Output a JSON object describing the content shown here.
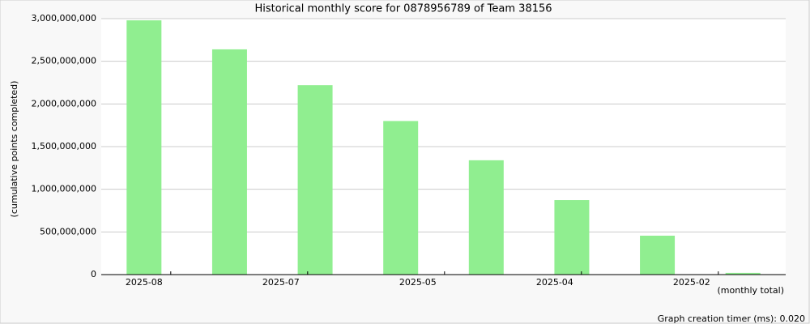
{
  "chart_data": {
    "type": "bar",
    "title": "Historical monthly score for 0878956789 of Team 38156",
    "y_label": "(cumulative points completed)",
    "x_label": "(monthly total)",
    "footer": "Graph creation timer (ms): 0.020",
    "xtick_labels": [
      "2025-08",
      "2025-07",
      "2025-05",
      "2025-04",
      "2025-02"
    ],
    "values": [
      2980000000,
      2640000000,
      2220000000,
      1800000000,
      1340000000,
      873000000,
      456000000,
      20000000
    ],
    "color": "#90ee90",
    "ylim": [
      0,
      3000000000
    ],
    "yticks": [
      0,
      {
        "value": 500000000,
        "label": "500,000,000"
      },
      {
        "value": 1000000000,
        "label": "1,000,000,000"
      },
      {
        "value": 1500000000,
        "label": "1,500,000,000"
      },
      {
        "value": 2000000000,
        "label": "2,000,000,000"
      },
      {
        "value": 2500000000,
        "label": "2,500,000,000"
      },
      {
        "value": 3000000000,
        "label": "3,000,000,000"
      }
    ],
    "grid": true
  }
}
